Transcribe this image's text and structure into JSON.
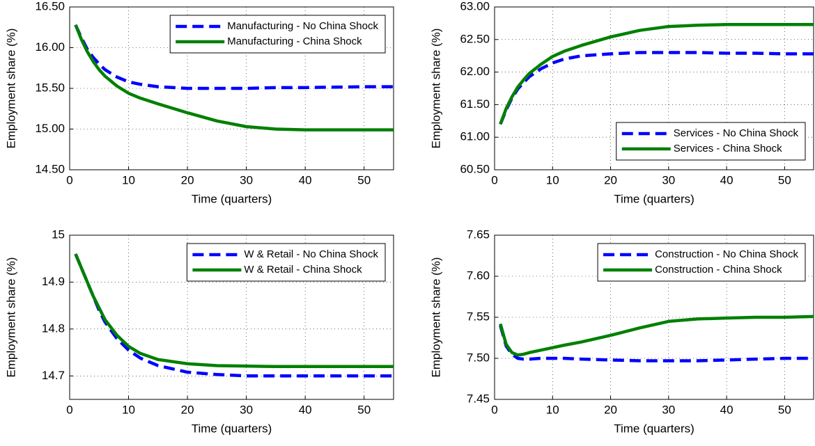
{
  "chart_data": [
    {
      "type": "line",
      "xlabel": "Time (quarters)",
      "ylabel": "Employment share (%)",
      "x": [
        1,
        2,
        3,
        4,
        5,
        6,
        8,
        10,
        12,
        15,
        20,
        25,
        30,
        35,
        40,
        45,
        50,
        55
      ],
      "xlim": [
        0,
        55
      ],
      "xticks": [
        0,
        10,
        20,
        30,
        40,
        50
      ],
      "ylim": [
        14.5,
        16.5
      ],
      "yticks": [
        {
          "value": 14.5,
          "label": "14.50"
        },
        {
          "value": 15,
          "label": "15.00"
        },
        {
          "value": 15.5,
          "label": "15.50"
        },
        {
          "value": 16,
          "label": "16.00"
        },
        {
          "value": 16.5,
          "label": "16.50"
        }
      ],
      "grid": true,
      "legend": "upper right",
      "series": [
        {
          "name": "Manufacturing - No China Shock",
          "color": "#0000ff",
          "dash": "dashed",
          "values": [
            16.28,
            16.12,
            15.98,
            15.88,
            15.8,
            15.73,
            15.64,
            15.58,
            15.55,
            15.52,
            15.5,
            15.5,
            15.5,
            15.51,
            15.51,
            15.515,
            15.52,
            15.52
          ]
        },
        {
          "name": "Manufacturing - China Shock",
          "color": "#008000",
          "dash": "solid",
          "values": [
            16.28,
            16.1,
            15.95,
            15.83,
            15.73,
            15.65,
            15.53,
            15.44,
            15.38,
            15.31,
            15.2,
            15.1,
            15.03,
            15.0,
            14.99,
            14.99,
            14.99,
            14.99
          ]
        }
      ]
    },
    {
      "type": "line",
      "xlabel": "Time (quarters)",
      "ylabel": "Employment share (%)",
      "x": [
        1,
        2,
        3,
        4,
        5,
        6,
        8,
        10,
        12,
        15,
        20,
        25,
        30,
        35,
        40,
        45,
        50,
        55
      ],
      "xlim": [
        0,
        55
      ],
      "xticks": [
        0,
        10,
        20,
        30,
        40,
        50
      ],
      "ylim": [
        60.5,
        63
      ],
      "yticks": [
        {
          "value": 60.5,
          "label": "60.50"
        },
        {
          "value": 61,
          "label": "61.00"
        },
        {
          "value": 61.5,
          "label": "61.50"
        },
        {
          "value": 62,
          "label": "62.00"
        },
        {
          "value": 62.5,
          "label": "62.50"
        },
        {
          "value": 63,
          "label": "63.00"
        }
      ],
      "grid": true,
      "legend": "lower right",
      "series": [
        {
          "name": "Services - No China Shock",
          "color": "#0000ff",
          "dash": "dashed",
          "values": [
            61.2,
            61.42,
            61.6,
            61.74,
            61.84,
            61.93,
            62.05,
            62.14,
            62.2,
            62.25,
            62.28,
            62.3,
            62.3,
            62.3,
            62.29,
            62.29,
            62.28,
            62.28
          ]
        },
        {
          "name": "Services - China Shock",
          "color": "#008000",
          "dash": "solid",
          "values": [
            61.2,
            61.44,
            61.62,
            61.77,
            61.88,
            61.98,
            62.12,
            62.24,
            62.32,
            62.41,
            62.54,
            62.64,
            62.7,
            62.72,
            62.73,
            62.73,
            62.73,
            62.73
          ]
        }
      ]
    },
    {
      "type": "line",
      "xlabel": "Time (quarters)",
      "ylabel": "Employment share (%)",
      "x": [
        1,
        2,
        3,
        4,
        5,
        6,
        8,
        10,
        12,
        15,
        20,
        25,
        30,
        35,
        40,
        45,
        50,
        55
      ],
      "xlim": [
        0,
        55
      ],
      "xticks": [
        0,
        10,
        20,
        30,
        40,
        50
      ],
      "ylim": [
        14.65,
        15
      ],
      "yticks": [
        14.7,
        14.8,
        14.9,
        15
      ],
      "grid": true,
      "legend": "upper right",
      "series": [
        {
          "name": "W & Retail - No China Shock",
          "color": "#0000ff",
          "dash": "dashed",
          "values": [
            14.96,
            14.93,
            14.9,
            14.87,
            14.84,
            14.815,
            14.78,
            14.755,
            14.738,
            14.722,
            14.708,
            14.703,
            14.7,
            14.7,
            14.7,
            14.7,
            14.7,
            14.7
          ]
        },
        {
          "name": "W & Retail - China Shock",
          "color": "#008000",
          "dash": "solid",
          "values": [
            14.96,
            14.93,
            14.9,
            14.87,
            14.845,
            14.82,
            14.787,
            14.763,
            14.748,
            14.735,
            14.726,
            14.722,
            14.721,
            14.72,
            14.72,
            14.72,
            14.72,
            14.72
          ]
        }
      ]
    },
    {
      "type": "line",
      "xlabel": "Time (quarters)",
      "ylabel": "Employment share (%)",
      "x": [
        1,
        2,
        3,
        4,
        5,
        6,
        8,
        10,
        12,
        15,
        20,
        25,
        30,
        35,
        40,
        45,
        50,
        55
      ],
      "xlim": [
        0,
        55
      ],
      "xticks": [
        0,
        10,
        20,
        30,
        40,
        50
      ],
      "ylim": [
        7.45,
        7.65
      ],
      "yticks": [
        7.45,
        {
          "value": 7.5,
          "label": "7.50"
        },
        7.55,
        {
          "value": 7.6,
          "label": "7.60"
        },
        7.65
      ],
      "grid": true,
      "legend": "upper right",
      "series": [
        {
          "name": "Construction - No China Shock",
          "color": "#0000ff",
          "dash": "dashed",
          "values": [
            7.54,
            7.515,
            7.505,
            7.5,
            7.499,
            7.499,
            7.5,
            7.5,
            7.5,
            7.499,
            7.498,
            7.497,
            7.497,
            7.497,
            7.498,
            7.499,
            7.5,
            7.5
          ]
        },
        {
          "name": "Construction  - China Shock",
          "color": "#008000",
          "dash": "solid",
          "values": [
            7.542,
            7.517,
            7.507,
            7.504,
            7.505,
            7.507,
            7.51,
            7.513,
            7.516,
            7.52,
            7.528,
            7.537,
            7.545,
            7.548,
            7.549,
            7.55,
            7.55,
            7.551
          ]
        }
      ]
    }
  ]
}
